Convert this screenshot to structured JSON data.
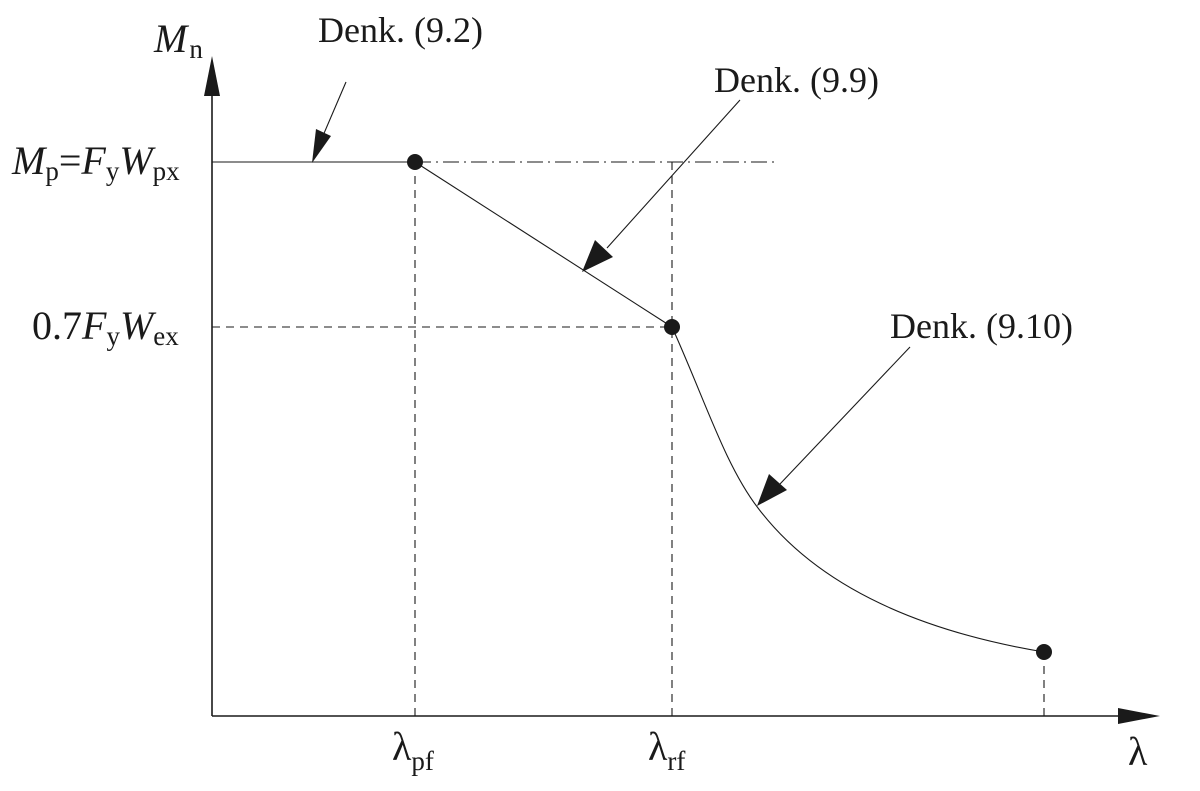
{
  "axes": {
    "y_symbol": "M",
    "y_subscript": "n",
    "x_symbol": "λ"
  },
  "y_levels": {
    "plastic": {
      "M": "M",
      "M_sub": "p",
      "eq": "=",
      "F": "F",
      "F_sub": "y",
      "W": "W",
      "W_sub": "px"
    },
    "elastic": {
      "coef": "0.7",
      "F": "F",
      "F_sub": "y",
      "W": "W",
      "W_sub": "ex"
    }
  },
  "x_levels": {
    "pf": {
      "symbol": "λ",
      "subscript": "pf"
    },
    "rf": {
      "symbol": "λ",
      "subscript": "rf"
    }
  },
  "annotations": {
    "plateau": "Denk. (9.2)",
    "linear": "Denk. (9.9)",
    "elastic": "Denk. (9.10)"
  },
  "colors": {
    "ink": "#1a1a1a",
    "background": "#ffffff"
  }
}
